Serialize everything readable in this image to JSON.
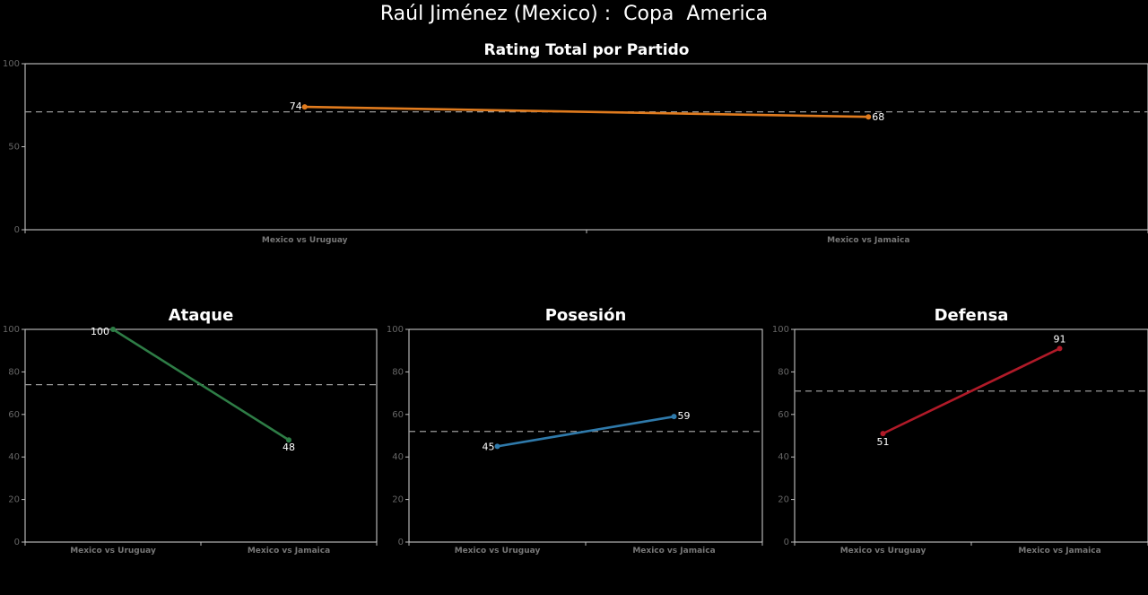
{
  "page": {
    "title": "Raúl Jiménez (Mexico) :  Copa  America"
  },
  "chart_data": [
    {
      "type": "line",
      "title": "Rating Total por Partido",
      "categories": [
        "Mexico vs Uruguay",
        "Mexico vs Jamaica"
      ],
      "values": [
        74,
        68
      ],
      "average": 71,
      "ylim": [
        0,
        100
      ],
      "yticks": [
        0,
        50,
        100
      ],
      "color": "#e07b1e"
    },
    {
      "type": "line",
      "title": "Ataque",
      "categories": [
        "Mexico vs Uruguay",
        "Mexico vs Jamaica"
      ],
      "values": [
        100,
        48
      ],
      "average": 74,
      "ylim": [
        0,
        100
      ],
      "yticks": [
        0,
        20,
        40,
        60,
        80,
        100
      ],
      "color": "#2e7d46"
    },
    {
      "type": "line",
      "title": "Posesión",
      "categories": [
        "Mexico vs Uruguay",
        "Mexico vs Jamaica"
      ],
      "values": [
        45,
        59
      ],
      "average": 52,
      "ylim": [
        0,
        100
      ],
      "yticks": [
        0,
        20,
        40,
        60,
        80,
        100
      ],
      "color": "#2f7aab"
    },
    {
      "type": "line",
      "title": "Defensa",
      "categories": [
        "Mexico vs Uruguay",
        "Mexico vs Jamaica"
      ],
      "values": [
        51,
        91
      ],
      "average": 71,
      "ylim": [
        0,
        100
      ],
      "yticks": [
        0,
        20,
        40,
        60,
        80,
        100
      ],
      "color": "#b01a28"
    }
  ]
}
